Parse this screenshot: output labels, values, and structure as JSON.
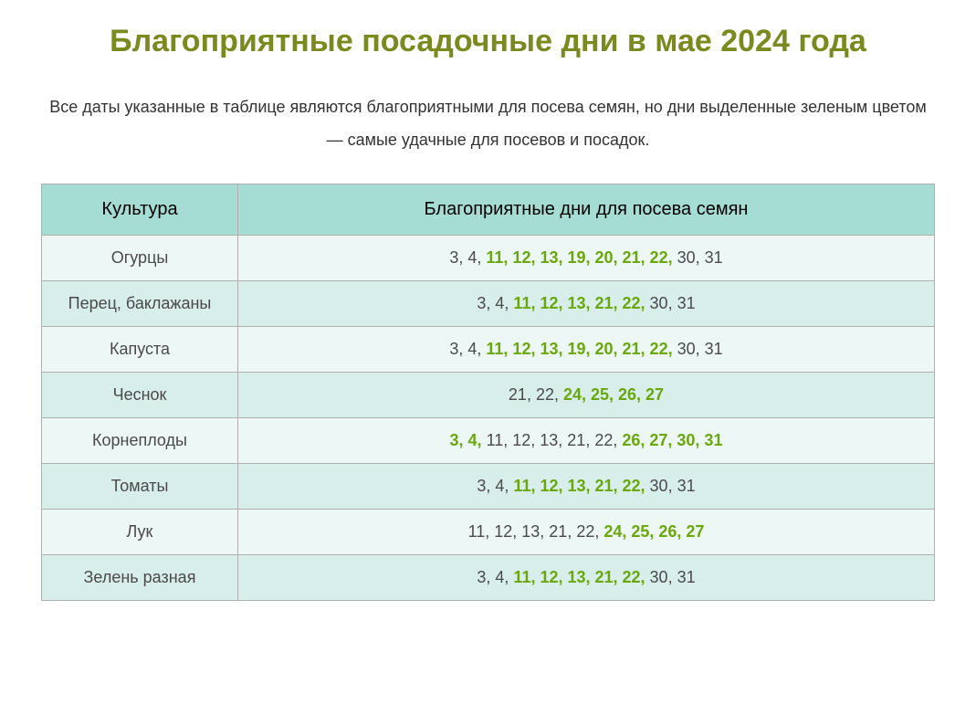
{
  "title": "Благоприятные посадочные дни в мае 2024 года",
  "title_color": "#7a8a1f",
  "subtitle": "Все даты указанные в таблице являются благоприятными для посева семян, но дни выделенные зеленым цветом — самые удачные для посевов и посадок.",
  "highlight_color": "#6aa70d",
  "normal_text_color": "#4a4a4a",
  "header_bg": "#a5dcd3",
  "row_odd_bg": "#edf7f6",
  "row_even_bg": "#d7eeeb",
  "columns": [
    "Культура",
    "Благоприятные дни для посева семян"
  ],
  "rows": [
    {
      "name": "Огурцы",
      "dates": [
        {
          "t": "3, 4, ",
          "hl": false
        },
        {
          "t": "11, 12, 13, 19, 20, 21, 22,",
          "hl": true
        },
        {
          "t": " 30, 31",
          "hl": false
        }
      ]
    },
    {
      "name": "Перец, баклажаны",
      "dates": [
        {
          "t": "3, 4, ",
          "hl": false
        },
        {
          "t": "11, 12, 13, 21, 22,",
          "hl": true
        },
        {
          "t": " 30, 31",
          "hl": false
        }
      ]
    },
    {
      "name": "Капуста",
      "dates": [
        {
          "t": "3, 4, ",
          "hl": false
        },
        {
          "t": "11, 12, 13, 19, 20, 21, 22,",
          "hl": true
        },
        {
          "t": " 30, 31",
          "hl": false
        }
      ]
    },
    {
      "name": "Чеснок",
      "dates": [
        {
          "t": "21, 22, ",
          "hl": false
        },
        {
          "t": "24, 25, 26, 27",
          "hl": true
        }
      ]
    },
    {
      "name": "Корнеплоды",
      "dates": [
        {
          "t": "3, 4,",
          "hl": true
        },
        {
          "t": " 11, 12, 13, 21, 22, ",
          "hl": false
        },
        {
          "t": "26, 27, 30, 31",
          "hl": true
        }
      ]
    },
    {
      "name": "Томаты",
      "dates": [
        {
          "t": "3, 4, ",
          "hl": false
        },
        {
          "t": "11, 12, 13, 21, 22,",
          "hl": true
        },
        {
          "t": " 30, 31",
          "hl": false
        }
      ]
    },
    {
      "name": "Лук",
      "dates": [
        {
          "t": "11, 12, 13, 21, 22, ",
          "hl": false
        },
        {
          "t": "24, 25, 26, 27",
          "hl": true
        }
      ]
    },
    {
      "name": "Зелень разная",
      "dates": [
        {
          "t": "3, 4, ",
          "hl": false
        },
        {
          "t": "11, 12, 13, 21, 22,",
          "hl": true
        },
        {
          "t": " 30, 31",
          "hl": false
        }
      ]
    }
  ]
}
